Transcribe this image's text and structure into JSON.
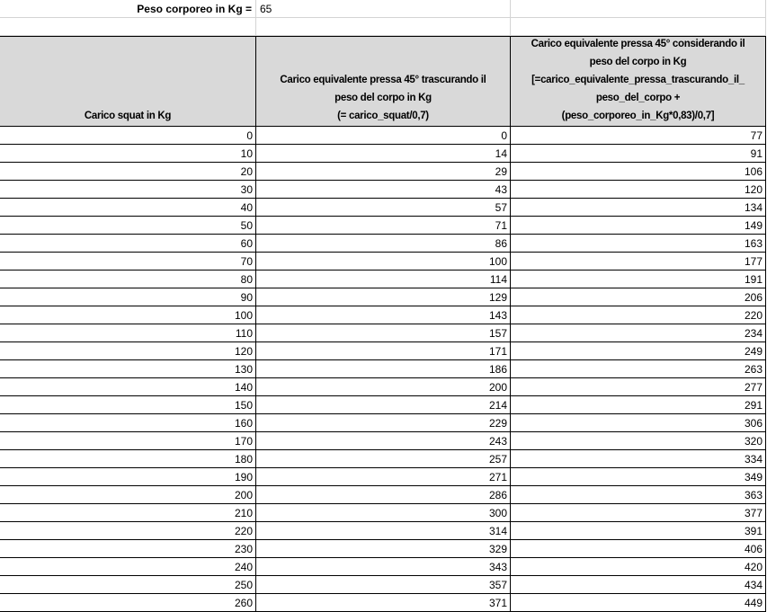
{
  "body_weight": {
    "label": "Peso corporeo in Kg =",
    "value": "65"
  },
  "table": {
    "headers": [
      [
        "Carico squat in Kg"
      ],
      [
        "Carico equivalente pressa 45° trascurando il",
        "peso del corpo in Kg",
        "(= carico_squat/0,7)"
      ],
      [
        "Carico equivalente pressa 45° considerando il",
        "peso del corpo in Kg",
        "[=carico_equivalente_pressa_trascurando_il_",
        "peso_del_corpo +",
        "(peso_corporeo_in_Kg*0,83)/0,7]"
      ]
    ],
    "rows": [
      [
        "0",
        "0",
        "77"
      ],
      [
        "10",
        "14",
        "91"
      ],
      [
        "20",
        "29",
        "106"
      ],
      [
        "30",
        "43",
        "120"
      ],
      [
        "40",
        "57",
        "134"
      ],
      [
        "50",
        "71",
        "149"
      ],
      [
        "60",
        "86",
        "163"
      ],
      [
        "70",
        "100",
        "177"
      ],
      [
        "80",
        "114",
        "191"
      ],
      [
        "90",
        "129",
        "206"
      ],
      [
        "100",
        "143",
        "220"
      ],
      [
        "110",
        "157",
        "234"
      ],
      [
        "120",
        "171",
        "249"
      ],
      [
        "130",
        "186",
        "263"
      ],
      [
        "140",
        "200",
        "277"
      ],
      [
        "150",
        "214",
        "291"
      ],
      [
        "160",
        "229",
        "306"
      ],
      [
        "170",
        "243",
        "320"
      ],
      [
        "180",
        "257",
        "334"
      ],
      [
        "190",
        "271",
        "349"
      ],
      [
        "200",
        "286",
        "363"
      ],
      [
        "210",
        "300",
        "377"
      ],
      [
        "220",
        "314",
        "391"
      ],
      [
        "230",
        "329",
        "406"
      ],
      [
        "240",
        "343",
        "420"
      ],
      [
        "250",
        "357",
        "434"
      ],
      [
        "260",
        "371",
        "449"
      ]
    ]
  }
}
